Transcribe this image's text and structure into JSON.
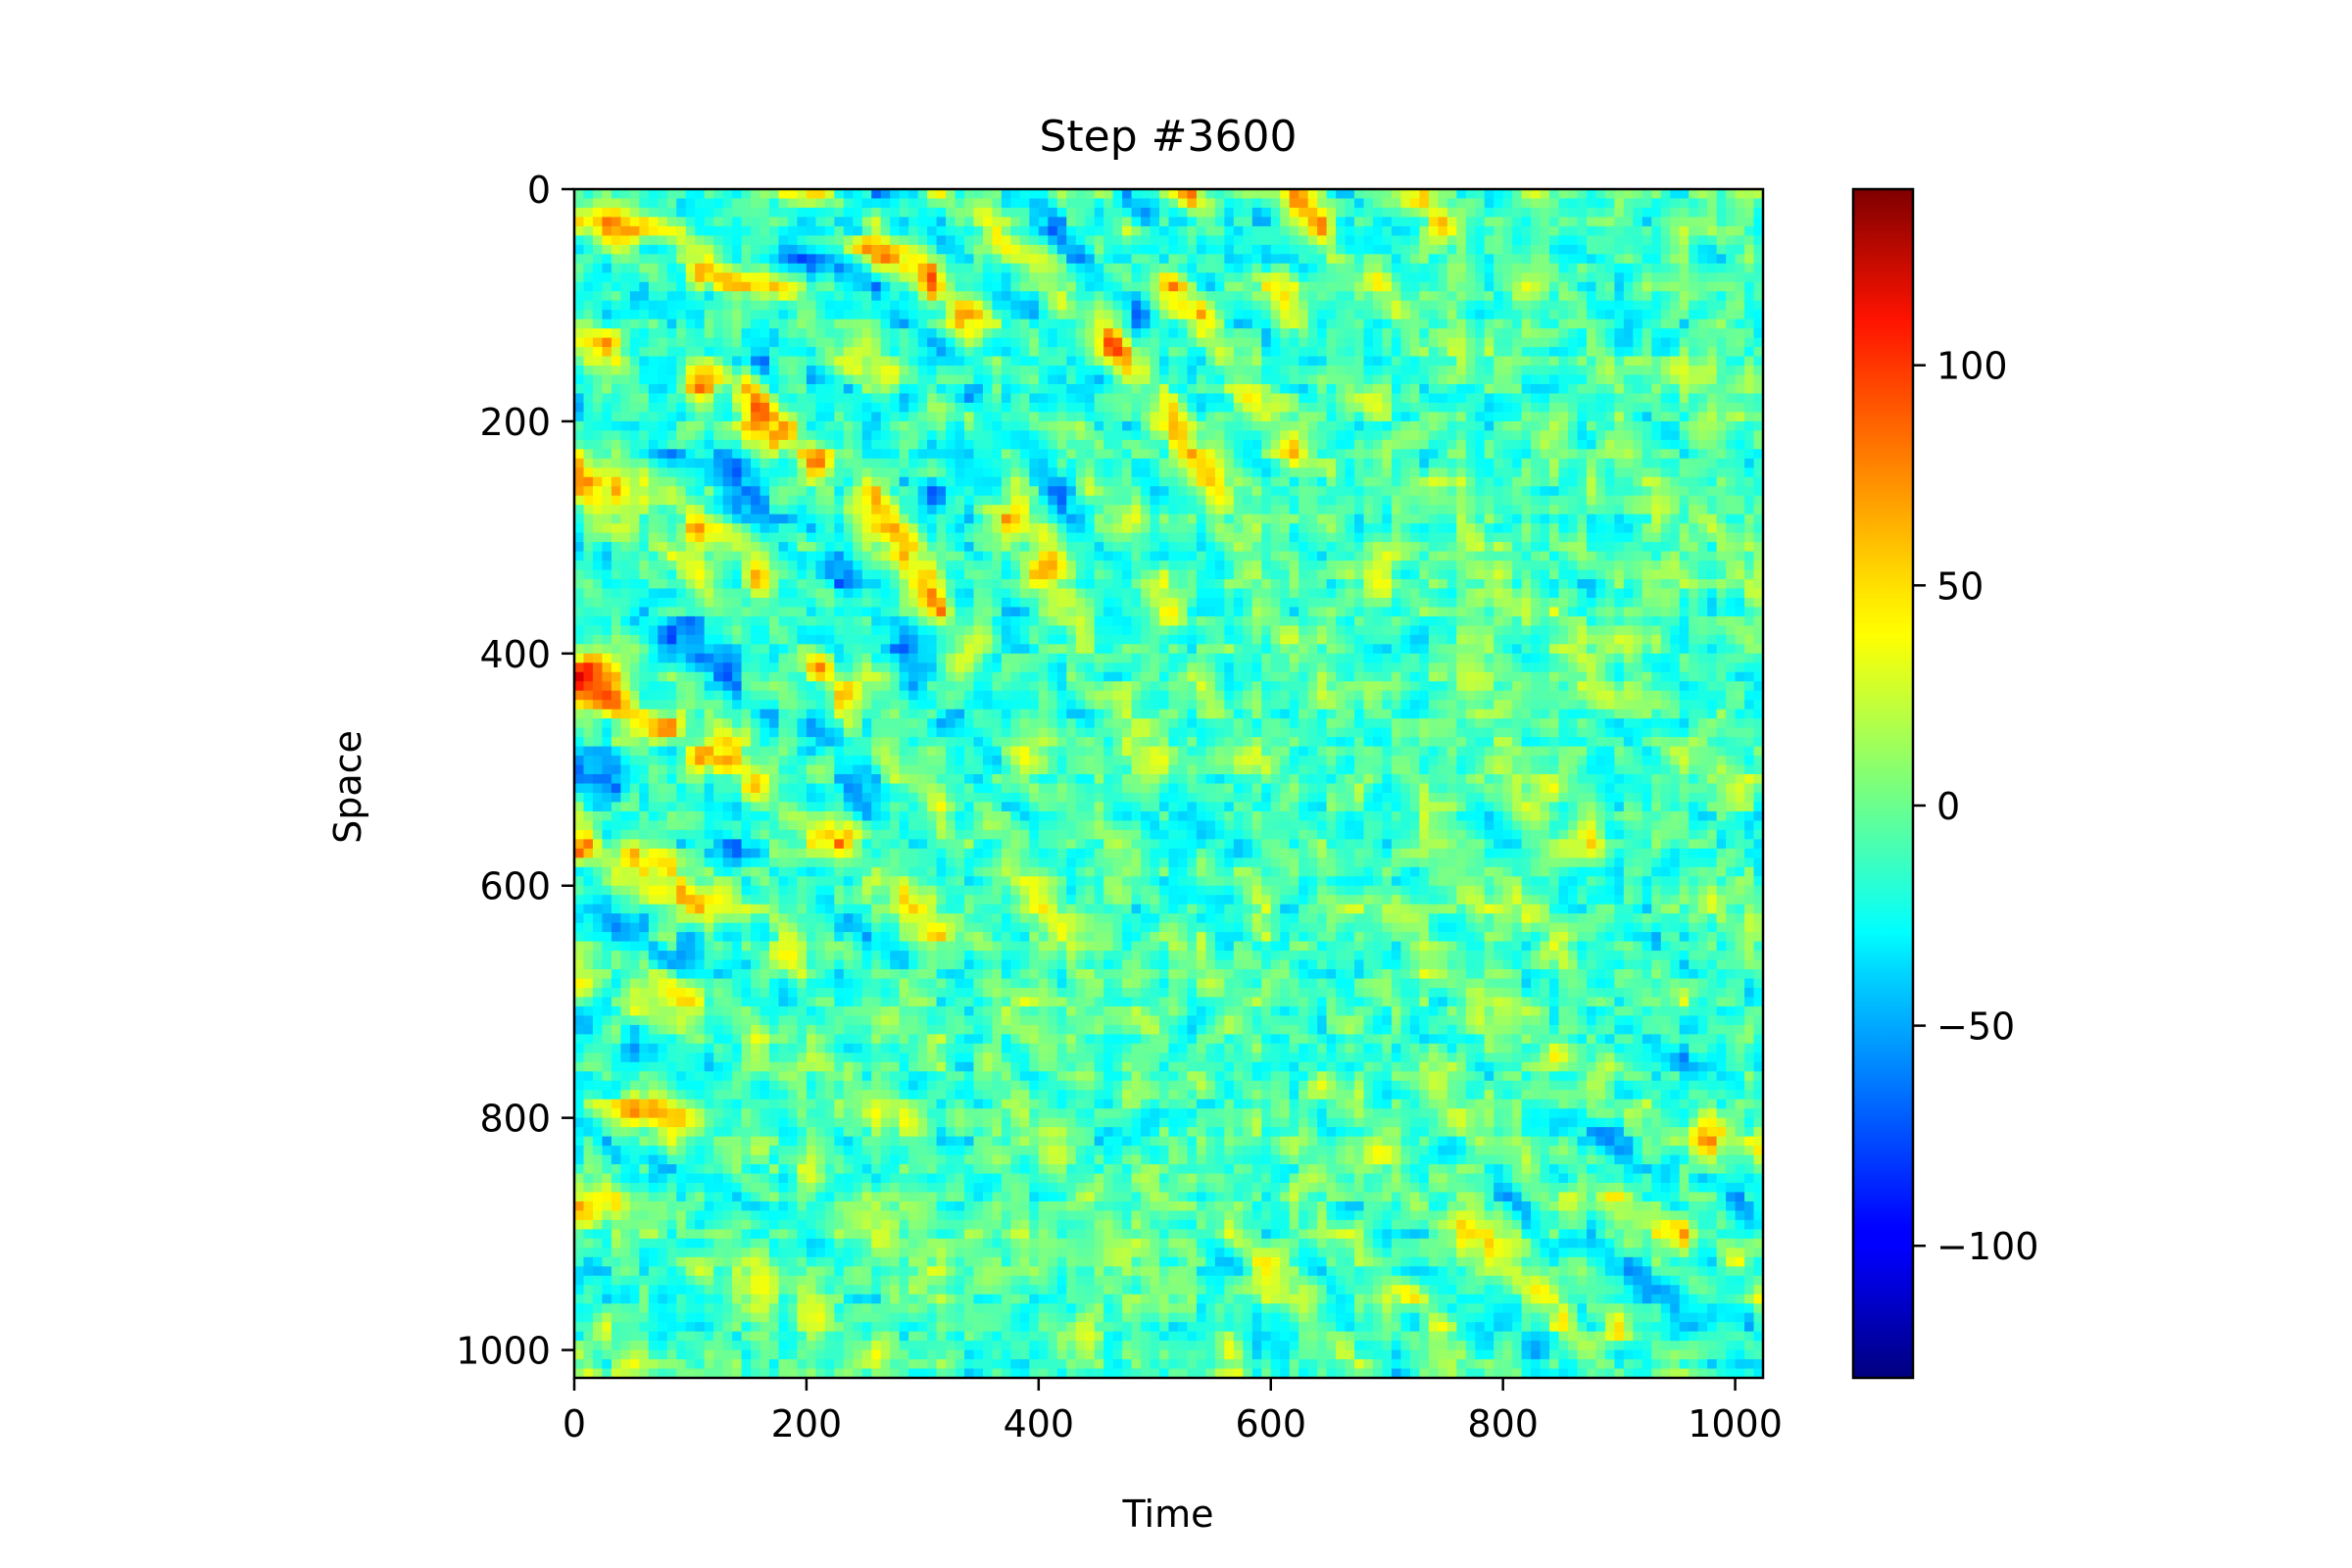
{
  "chart_data": {
    "type": "heatmap",
    "title": "Step #3600",
    "xlabel": "Time",
    "ylabel": "Space",
    "xlim": [
      0,
      1024
    ],
    "ylim": [
      1024,
      0
    ],
    "xticks": [
      {
        "value": 0,
        "label": "0"
      },
      {
        "value": 200,
        "label": "200"
      },
      {
        "value": 400,
        "label": "400"
      },
      {
        "value": 600,
        "label": "600"
      },
      {
        "value": 800,
        "label": "800"
      },
      {
        "value": 1000,
        "label": "1000"
      }
    ],
    "yticks": [
      {
        "value": 0,
        "label": "0"
      },
      {
        "value": 200,
        "label": "200"
      },
      {
        "value": 400,
        "label": "400"
      },
      {
        "value": 600,
        "label": "600"
      },
      {
        "value": 800,
        "label": "800"
      },
      {
        "value": 1000,
        "label": "1000"
      }
    ],
    "colorbar": {
      "colormap": "jet",
      "vmin": -130,
      "vmax": 140,
      "ticks": [
        {
          "value": 100,
          "label": "100"
        },
        {
          "value": 50,
          "label": "50"
        },
        {
          "value": 0,
          "label": "0"
        },
        {
          "value": -50,
          "label": "−50"
        },
        {
          "value": -100,
          "label": "−100"
        }
      ]
    },
    "pattern": "diagonal bands of alternating positive (red/orange) and negative (blue) values running from upper-left to lower-right over a noisy cyan/green/yellow background",
    "grid": false
  }
}
